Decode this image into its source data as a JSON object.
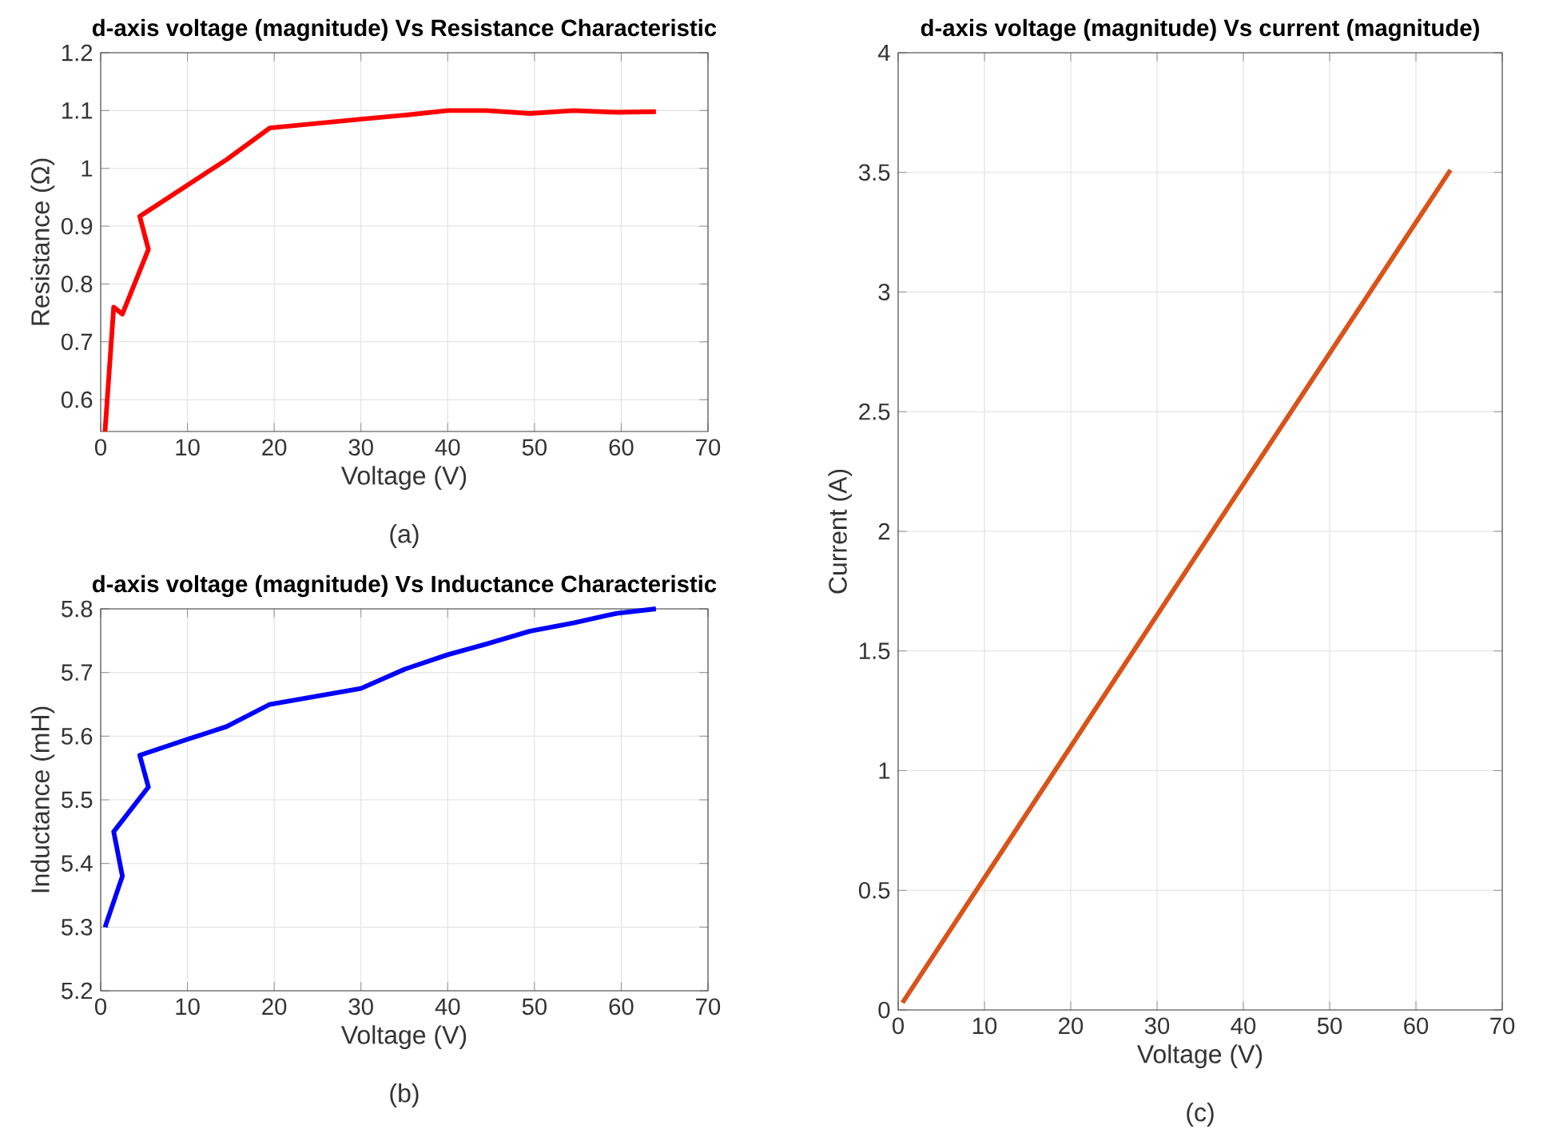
{
  "chart_data": [
    {
      "type": "line",
      "title": "d-axis voltage (magnitude) Vs Resistance Characteristic",
      "xlabel": "Voltage (V)",
      "ylabel": "Resistance (Ω)",
      "annotations": [
        "(a)"
      ],
      "xlim": [
        0,
        70
      ],
      "ylim": [
        0.545,
        1.2
      ],
      "xticks": [
        0,
        10,
        20,
        30,
        40,
        50,
        60,
        70
      ],
      "yticks": [
        0.6,
        0.7,
        0.8,
        0.9,
        1,
        1.1,
        1.2
      ],
      "grid": true,
      "series": [
        {
          "color": "#ff0000",
          "x": [
            0.5,
            1.5,
            2.5,
            5.5,
            4.5,
            14.5,
            19.5,
            30,
            35,
            40,
            44.5,
            49.5,
            54.5,
            59.5,
            64
          ],
          "values": [
            0.545,
            0.76,
            0.748,
            0.86,
            0.917,
            1.015,
            1.07,
            1.085,
            1.092,
            1.1,
            1.1,
            1.095,
            1.1,
            1.097,
            1.098
          ]
        }
      ]
    },
    {
      "type": "line",
      "title": "d-axis voltage (magnitude) Vs Inductance Characteristic",
      "xlabel": "Voltage (V)",
      "ylabel": "Inductance (mH)",
      "annotations": [
        "(b)"
      ],
      "xlim": [
        0,
        70
      ],
      "ylim": [
        5.2,
        5.8
      ],
      "xticks": [
        0,
        10,
        20,
        30,
        40,
        50,
        60,
        70
      ],
      "yticks": [
        5.2,
        5.3,
        5.4,
        5.5,
        5.6,
        5.7,
        5.8
      ],
      "grid": true,
      "series": [
        {
          "color": "#0000ff",
          "x": [
            0.5,
            2.5,
            1.5,
            5.5,
            4.5,
            10,
            14.5,
            19.5,
            30,
            35,
            40,
            44.5,
            49.5,
            54.5,
            59.5,
            64
          ],
          "values": [
            5.3,
            5.38,
            5.45,
            5.52,
            5.57,
            5.595,
            5.615,
            5.65,
            5.675,
            5.705,
            5.728,
            5.745,
            5.765,
            5.778,
            5.793,
            5.8
          ]
        }
      ]
    },
    {
      "type": "line",
      "title": "d-axis voltage (magnitude) Vs current (magnitude)",
      "xlabel": "Voltage (V)",
      "ylabel": "Current (A)",
      "annotations": [
        "(c)"
      ],
      "xlim": [
        0,
        70
      ],
      "ylim": [
        0,
        4
      ],
      "xticks": [
        0,
        10,
        20,
        30,
        40,
        50,
        60,
        70
      ],
      "yticks": [
        0,
        0.5,
        1,
        1.5,
        2,
        2.5,
        3,
        3.5,
        4
      ],
      "grid": true,
      "series": [
        {
          "color": "#d95319",
          "x": [
            0.5,
            30,
            64
          ],
          "values": [
            0.03,
            1.65,
            3.51
          ]
        }
      ]
    }
  ]
}
